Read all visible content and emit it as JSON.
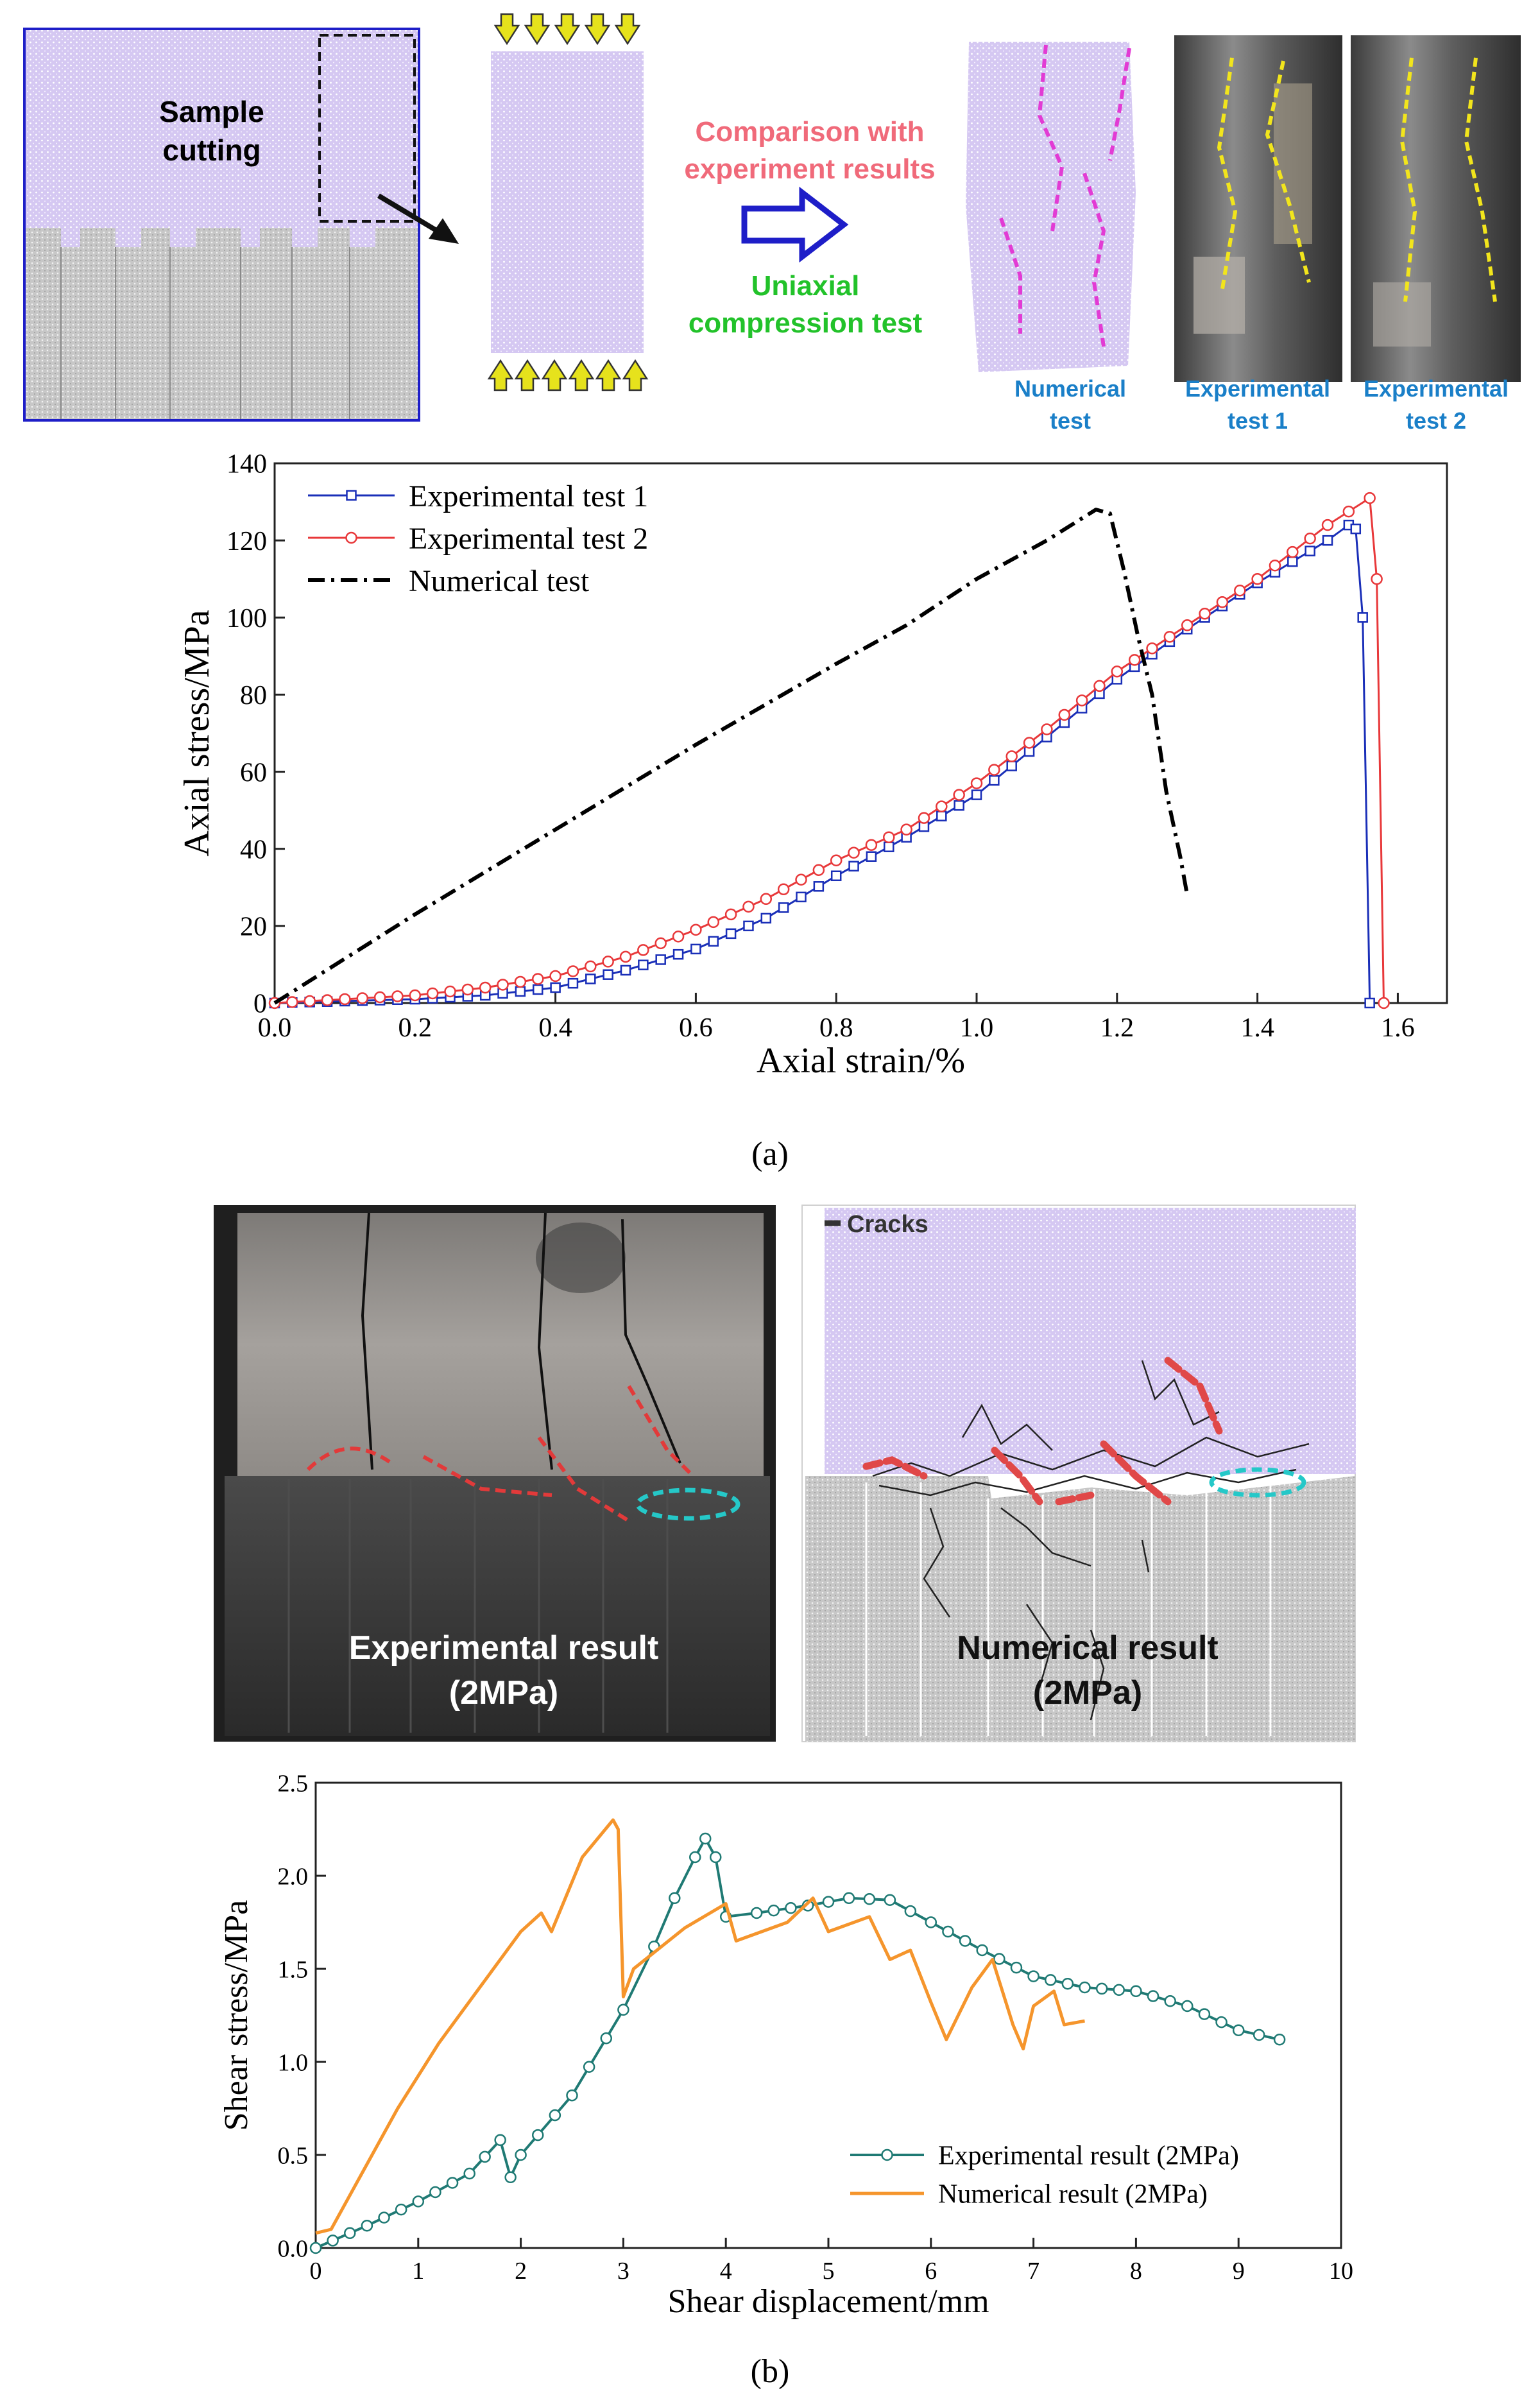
{
  "schematic": {
    "sample_cutting_line1": "Sample",
    "sample_cutting_line2": "cutting",
    "comparison_line1": "Comparison with",
    "comparison_line2": "experiment results",
    "uniaxial_line1": "Uniaxial",
    "uniaxial_line2": "compression test",
    "numerical_label_line1": "Numerical",
    "numerical_label_line2": "test",
    "exp1_label_line1": "Experimental",
    "exp1_label_line2": "test 1",
    "exp2_label_line1": "Experimental",
    "exp2_label_line2": "test 2"
  },
  "panel_a_caption": "(a)",
  "panel_b_caption": "(b)",
  "shear_photos": {
    "exp_label_line1": "Experimental  result",
    "exp_label_line2": "(2MPa)",
    "num_label_line1": "Numerical result",
    "num_label_line2": "(2MPa)",
    "cracks_legend": "Cracks"
  },
  "colors": {
    "purple_fill": "#d5c8f2",
    "gray_fill": "#c9c9c9",
    "blue_frame": "#1e1ec8",
    "pink_text": "#f06a7a",
    "green_text": "#22c22a",
    "label_blue": "#1a7fc8",
    "exp1_line": "#1a2fb8",
    "exp2_line": "#e8383a",
    "num_line": "#000000",
    "exp_shear": "#1f7a74",
    "num_shear": "#f5952c"
  },
  "chart_data": [
    {
      "type": "line",
      "title": "",
      "xlabel": "Axial strain/%",
      "ylabel": "Axial stress/MPa",
      "xlim": [
        0,
        1.67
      ],
      "ylim": [
        0,
        140
      ],
      "xticks": [
        "0.0",
        "0.2",
        "0.4",
        "0.6",
        "0.8",
        "1.0",
        "1.2",
        "1.4",
        "1.6"
      ],
      "yticks": [
        "0",
        "20",
        "40",
        "60",
        "80",
        "100",
        "120",
        "140"
      ],
      "legend_position": "top-left",
      "series": [
        {
          "name": "Experimental test 1",
          "marker": "square",
          "points": [
            [
              0,
              0
            ],
            [
              0.2,
              1
            ],
            [
              0.3,
              2
            ],
            [
              0.4,
              4
            ],
            [
              0.5,
              8.5
            ],
            [
              0.6,
              14
            ],
            [
              0.7,
              22
            ],
            [
              0.8,
              33
            ],
            [
              0.9,
              43
            ],
            [
              1.0,
              54
            ],
            [
              1.1,
              69
            ],
            [
              1.2,
              84
            ],
            [
              1.3,
              97
            ],
            [
              1.4,
              109
            ],
            [
              1.5,
              120
            ],
            [
              1.53,
              124
            ],
            [
              1.54,
              123
            ],
            [
              1.55,
              100
            ],
            [
              1.56,
              0
            ]
          ]
        },
        {
          "name": "Experimental test 2",
          "marker": "circle",
          "points": [
            [
              0,
              0
            ],
            [
              0.1,
              1
            ],
            [
              0.2,
              2
            ],
            [
              0.3,
              4
            ],
            [
              0.4,
              7
            ],
            [
              0.5,
              12
            ],
            [
              0.6,
              19
            ],
            [
              0.7,
              27
            ],
            [
              0.8,
              37
            ],
            [
              0.9,
              45
            ],
            [
              1.0,
              57
            ],
            [
              1.1,
              71
            ],
            [
              1.2,
              86
            ],
            [
              1.3,
              98
            ],
            [
              1.4,
              110
            ],
            [
              1.5,
              124
            ],
            [
              1.56,
              131
            ],
            [
              1.57,
              110
            ],
            [
              1.58,
              0
            ]
          ]
        },
        {
          "name": "Numerical test",
          "marker": "none",
          "dash": "dash-dot",
          "points": [
            [
              0,
              0
            ],
            [
              0.2,
              23
            ],
            [
              0.4,
              45
            ],
            [
              0.6,
              67
            ],
            [
              0.8,
              88
            ],
            [
              0.9,
              98
            ],
            [
              1.0,
              110
            ],
            [
              1.1,
              120
            ],
            [
              1.17,
              128
            ],
            [
              1.19,
              127
            ],
            [
              1.21,
              112
            ],
            [
              1.23,
              95
            ],
            [
              1.25,
              80
            ],
            [
              1.27,
              55
            ],
            [
              1.29,
              38
            ],
            [
              1.3,
              28
            ]
          ]
        }
      ]
    },
    {
      "type": "line",
      "title": "",
      "xlabel": "Shear displacement/mm",
      "ylabel": "Shear stress/MPa",
      "xlim": [
        0,
        10
      ],
      "ylim": [
        0,
        2.5
      ],
      "xticks": [
        "0",
        "1",
        "2",
        "3",
        "4",
        "5",
        "6",
        "7",
        "8",
        "9",
        "10"
      ],
      "yticks": [
        "0.0",
        "0.5",
        "1.0",
        "1.5",
        "2.0",
        "2.5"
      ],
      "legend_position": "bottom-right",
      "series": [
        {
          "name": "Experimental result (2MPa)",
          "marker": "circle",
          "points": [
            [
              0,
              0
            ],
            [
              0.5,
              0.12
            ],
            [
              1.0,
              0.25
            ],
            [
              1.5,
              0.4
            ],
            [
              1.8,
              0.58
            ],
            [
              1.9,
              0.38
            ],
            [
              2.0,
              0.5
            ],
            [
              2.5,
              0.82
            ],
            [
              3.0,
              1.28
            ],
            [
              3.3,
              1.62
            ],
            [
              3.5,
              1.88
            ],
            [
              3.7,
              2.1
            ],
            [
              3.8,
              2.2
            ],
            [
              3.9,
              2.1
            ],
            [
              4.0,
              1.78
            ],
            [
              4.3,
              1.8
            ],
            [
              4.8,
              1.84
            ],
            [
              5.2,
              1.88
            ],
            [
              5.6,
              1.87
            ],
            [
              6.0,
              1.75
            ],
            [
              6.5,
              1.6
            ],
            [
              7.0,
              1.46
            ],
            [
              7.5,
              1.4
            ],
            [
              8.0,
              1.38
            ],
            [
              8.5,
              1.3
            ],
            [
              9.0,
              1.17
            ],
            [
              9.4,
              1.12
            ]
          ]
        },
        {
          "name": "Numerical result (2MPa)",
          "marker": "none",
          "points": [
            [
              0,
              0.08
            ],
            [
              0.15,
              0.1
            ],
            [
              0.4,
              0.35
            ],
            [
              0.8,
              0.75
            ],
            [
              1.2,
              1.1
            ],
            [
              1.6,
              1.4
            ],
            [
              2.0,
              1.7
            ],
            [
              2.2,
              1.8
            ],
            [
              2.3,
              1.7
            ],
            [
              2.6,
              2.1
            ],
            [
              2.9,
              2.3
            ],
            [
              2.95,
              2.25
            ],
            [
              3.0,
              1.35
            ],
            [
              3.1,
              1.5
            ],
            [
              3.6,
              1.72
            ],
            [
              4.0,
              1.85
            ],
            [
              4.1,
              1.65
            ],
            [
              4.6,
              1.75
            ],
            [
              4.85,
              1.88
            ],
            [
              5.0,
              1.7
            ],
            [
              5.4,
              1.78
            ],
            [
              5.6,
              1.55
            ],
            [
              5.8,
              1.6
            ],
            [
              6.0,
              1.32
            ],
            [
              6.15,
              1.12
            ],
            [
              6.4,
              1.4
            ],
            [
              6.6,
              1.55
            ],
            [
              6.8,
              1.2
            ],
            [
              6.9,
              1.07
            ],
            [
              7.0,
              1.3
            ],
            [
              7.2,
              1.38
            ],
            [
              7.3,
              1.2
            ],
            [
              7.5,
              1.22
            ]
          ]
        }
      ]
    }
  ]
}
